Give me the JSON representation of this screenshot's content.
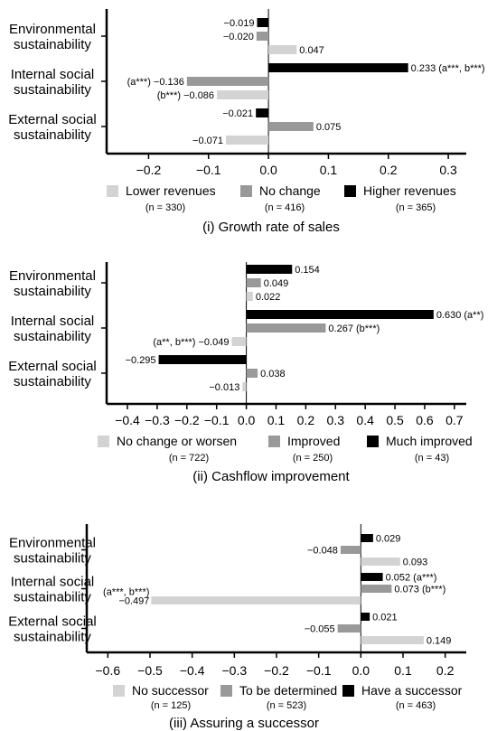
{
  "colors": {
    "light": "#d3d3d3",
    "mid": "#999999",
    "dark": "#000000",
    "axis": "#000000"
  },
  "chart_data": [
    {
      "type": "bar",
      "orientation": "horizontal",
      "caption": "(i) Growth rate of sales",
      "categories": [
        [
          "Environmental",
          "sustainability"
        ],
        [
          "Internal social",
          "sustainability"
        ],
        [
          "External social",
          "sustainability"
        ]
      ],
      "xlim": [
        -0.27,
        0.33
      ],
      "xticks": [
        -0.2,
        -0.1,
        0.0,
        0.1,
        0.2,
        0.3
      ],
      "xtick_labels": [
        "−0.2",
        "−0.1",
        "0.0",
        "0.1",
        "0.2",
        "0.3"
      ],
      "legend_position": "bottom",
      "series": [
        {
          "name": "Higher revenues",
          "n": "(n = 365)",
          "color": "dark",
          "values": [
            -0.019,
            0.233,
            -0.021
          ],
          "labels": [
            "−0.019",
            "0.233",
            "−0.021"
          ],
          "notes": [
            "",
            "(a***, b***)",
            ""
          ]
        },
        {
          "name": "No change",
          "n": "(n = 416)",
          "color": "mid",
          "values": [
            -0.02,
            -0.136,
            0.075
          ],
          "labels": [
            "−0.020",
            "−0.136",
            "0.075"
          ],
          "notes": [
            "",
            "(a***)",
            ""
          ]
        },
        {
          "name": "Lower revenues",
          "n": "(n = 330)",
          "color": "light",
          "values": [
            0.047,
            -0.086,
            -0.071
          ],
          "labels": [
            "0.047",
            "−0.086",
            "−0.071"
          ],
          "notes": [
            "",
            "(b***)",
            ""
          ]
        }
      ],
      "legend_order": [
        2,
        1,
        0
      ]
    },
    {
      "type": "bar",
      "orientation": "horizontal",
      "caption": "(ii) Cashflow improvement",
      "categories": [
        [
          "Environmental",
          "sustainability"
        ],
        [
          "Internal social",
          "sustainability"
        ],
        [
          "External social",
          "sustainability"
        ]
      ],
      "xlim": [
        -0.47,
        0.74
      ],
      "xticks": [
        -0.4,
        -0.3,
        -0.2,
        -0.1,
        0.0,
        0.1,
        0.2,
        0.3,
        0.4,
        0.5,
        0.6,
        0.7
      ],
      "xtick_labels": [
        "−0.4",
        "−0.3",
        "−0.2",
        "−0.1",
        "0.0",
        "0.1",
        "0.2",
        "0.3",
        "0.4",
        "0.5",
        "0.6",
        "0.7"
      ],
      "legend_position": "bottom",
      "series": [
        {
          "name": "Much improved",
          "n": "(n = 43)",
          "color": "dark",
          "values": [
            0.154,
            0.63,
            -0.295
          ],
          "labels": [
            "0.154",
            "0.630",
            "−0.295"
          ],
          "notes": [
            "",
            "(a**)",
            ""
          ]
        },
        {
          "name": "Improved",
          "n": "(n = 250)",
          "color": "mid",
          "values": [
            0.049,
            0.267,
            0.038
          ],
          "labels": [
            "0.049",
            "0.267",
            "0.038"
          ],
          "notes": [
            "",
            "(b***)",
            ""
          ]
        },
        {
          "name": "No change or worsen",
          "n": "(n = 722)",
          "color": "light",
          "values": [
            0.022,
            -0.049,
            -0.013
          ],
          "labels": [
            "0.022",
            "−0.049",
            "−0.013"
          ],
          "notes": [
            "",
            "(a**, b***)",
            ""
          ]
        }
      ],
      "legend_order": [
        2,
        1,
        0
      ]
    },
    {
      "type": "bar",
      "orientation": "horizontal",
      "caption": "(iii) Assuring a successor",
      "categories": [
        [
          "Environmental",
          "sustainability"
        ],
        [
          "Internal social",
          "sustainability"
        ],
        [
          "External social",
          "sustainability"
        ]
      ],
      "xlim": [
        -0.65,
        0.25
      ],
      "xticks": [
        -0.6,
        -0.5,
        -0.4,
        -0.3,
        -0.2,
        -0.1,
        0.0,
        0.1,
        0.2
      ],
      "xtick_labels": [
        "−0.6",
        "−0.5",
        "−0.4",
        "−0.3",
        "−0.2",
        "−0.1",
        "0.0",
        "0.1",
        "0.2"
      ],
      "legend_position": "bottom",
      "series": [
        {
          "name": "Have a successor",
          "n": "(n = 463)",
          "color": "dark",
          "values": [
            0.029,
            0.052,
            0.021
          ],
          "labels": [
            "0.029",
            "0.052",
            "0.021"
          ],
          "notes": [
            "",
            "(a***)",
            ""
          ]
        },
        {
          "name": "To be determined",
          "n": "(n = 523)",
          "color": "mid",
          "values": [
            -0.048,
            0.073,
            -0.055
          ],
          "labels": [
            "−0.048",
            "0.073",
            "−0.055"
          ],
          "notes": [
            "",
            "(b***)",
            ""
          ]
        },
        {
          "name": "No successor",
          "n": "(n = 125)",
          "color": "light",
          "values": [
            0.093,
            -0.497,
            0.149
          ],
          "labels": [
            "0.093",
            "−0.497",
            "0.149"
          ],
          "notes": [
            "",
            "(a***, b***)",
            ""
          ]
        }
      ],
      "legend_order": [
        2,
        1,
        0
      ]
    }
  ]
}
